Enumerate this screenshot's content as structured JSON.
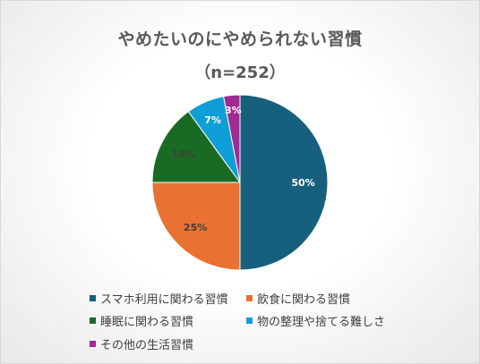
{
  "chart_data": {
    "type": "pie",
    "title": "やめたいのにやめられない習慣",
    "subtitle": "（n=252）",
    "categories": [
      "スマホ利用に関わる習慣",
      "飲食に関わる習慣",
      "睡眠に関わる習慣",
      "物の整理や捨てる難しさ",
      "その他の生活習慣"
    ],
    "values": [
      50,
      25,
      15,
      7,
      3
    ],
    "labels": [
      "50%",
      "25%",
      "15%",
      "7%",
      "3%"
    ],
    "colors": [
      "#17607d",
      "#e97132",
      "#196b24",
      "#0f9ed5",
      "#a02b93"
    ],
    "label_colors": [
      "#ffffff",
      "#404040",
      "#404040",
      "#ffffff",
      "#ffffff"
    ],
    "legend_position": "bottom"
  }
}
